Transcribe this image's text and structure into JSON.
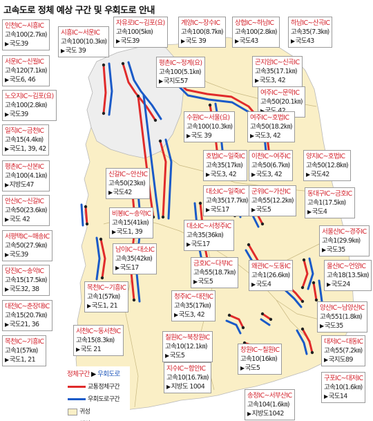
{
  "title": "고속도로 정체 예상 구간 및 우회도로 안내",
  "colors": {
    "congestion_line": "#e02b2b",
    "detour_line": "#1a5ac8",
    "capital_area": "#f2f2f2",
    "provinces": "#faefc6",
    "border": "#b9b9b9",
    "section_text": "#d3202a"
  },
  "legend": {
    "title_congestion": "정체구간",
    "title_detour": "우회도로",
    "items": [
      {
        "label": "교통정체구간"
      },
      {
        "label": "우회도로구간"
      },
      {
        "label": "귀성"
      },
      {
        "label": "귀경"
      }
    ]
  },
  "routes": [
    {
      "section": "인천IC~시흥IC",
      "congestion": "고속100(2.7㎞)",
      "detour": "국도39"
    },
    {
      "section": "시흥IC~서운IC",
      "congestion": "고속100(10.3㎞)",
      "detour": "국도 39"
    },
    {
      "section": "자유로IC~김포(요)",
      "congestion": "고속100(5㎞)",
      "detour": "국도39"
    },
    {
      "section": "계양IC~장수IC",
      "congestion": "고속100(8.7㎞)",
      "detour": "국도 39"
    },
    {
      "section": "상협IC~하남IC",
      "congestion": "고속100(2.8㎞)",
      "detour": "국도43"
    },
    {
      "section": "하남IC~산곡IC",
      "congestion": "고속35(7.3㎞)",
      "detour": "국도43"
    },
    {
      "section": "서운IC~신월IC",
      "congestion": "고속120(7.1㎞)",
      "detour": "국도6, 46"
    },
    {
      "section": "평촌IC~정계(요)",
      "congestion": "고속100(5.1㎞)",
      "detour": "국지도57"
    },
    {
      "section": "곤지암IC~신곡IC",
      "congestion": "고속35(17.1㎞)",
      "detour": "국도3, 42"
    },
    {
      "section": "노오지IC~김포(요)",
      "congestion": "고속100(2.8㎞)",
      "detour": "국도39"
    },
    {
      "section": "여주IC~문막IC",
      "congestion": "고속50(20.1㎞)",
      "detour": "국도 42"
    },
    {
      "section": "일직IC~금천IC",
      "congestion": "고속15(4.4㎞)",
      "detour": "국도1, 39, 42"
    },
    {
      "section": "수원IC~서울(요)",
      "congestion": "고속100(10.3㎞)",
      "detour": "국도 39"
    },
    {
      "section": "여주IC~호법IC",
      "congestion": "고속50(18.2㎞)",
      "detour": "국도3, 42"
    },
    {
      "section": "평촌IC~산본IC",
      "congestion": "고속100(4.1㎞)",
      "detour": "지방도47"
    },
    {
      "section": "호법IC~일죽IC",
      "congestion": "고속35(17㎞)",
      "detour": "국도3, 42"
    },
    {
      "section": "이천IC~여주IC",
      "congestion": "고속50(6.7㎞)",
      "detour": "국도3, 42"
    },
    {
      "section": "양지IC~호법IC",
      "congestion": "고속50(12.8㎞)",
      "detour": "국도42"
    },
    {
      "section": "신갈IC~안산IC",
      "congestion": "고속50(23㎞)",
      "detour": "국도42"
    },
    {
      "section": "안산IC~신갈IC",
      "congestion": "고속50(23.6㎞)",
      "detour": "국도 42"
    },
    {
      "section": "대소IC~일죽IC",
      "congestion": "고속35(17.7㎞)",
      "detour": "국도17"
    },
    {
      "section": "군위IC~가산IC",
      "congestion": "고속55(12.2㎞)",
      "detour": "국도5"
    },
    {
      "section": "동대구IC~금호IC",
      "congestion": "고속1(17.5㎞)",
      "detour": "국도4"
    },
    {
      "section": "비봉IC~송악IC",
      "congestion": "고속15(41㎞)",
      "detour": "국도1, 39"
    },
    {
      "section": "서평택IC~매송IC",
      "congestion": "고속50(27.9㎞)",
      "detour": "국도39"
    },
    {
      "section": "대소IC~서청주IC",
      "congestion": "고속35(36㎞)",
      "detour": "국도17"
    },
    {
      "section": "서울산IC~경주IC",
      "congestion": "고속1(29.9㎞)",
      "detour": "국도35"
    },
    {
      "section": "남이IC~대소IC",
      "congestion": "고속35(42㎞)",
      "detour": "국도17"
    },
    {
      "section": "금호IC~다부IC",
      "congestion": "고속55(18.7㎞)",
      "detour": "국도5"
    },
    {
      "section": "당진IC~송악IC",
      "congestion": "고속15(17.5㎞)",
      "detour": "국도32, 38"
    },
    {
      "section": "왜관IC~도동IC",
      "congestion": "고속1(26.6㎞)",
      "detour": "국도4"
    },
    {
      "section": "울산IC~언양IC",
      "congestion": "고속18(13.5㎞)",
      "detour": "국도24"
    },
    {
      "section": "목천IC~기흥IC",
      "congestion": "고속1(57㎞)",
      "detour": "국도1, 21"
    },
    {
      "section": "대전IC~춘장대IC",
      "congestion": "고속15(20.7㎞)",
      "detour": "국도21, 36"
    },
    {
      "section": "청주IC~대전IC",
      "congestion": "고속35(17㎞)",
      "detour": "국도3, 42"
    },
    {
      "section": "양산IC~남양산IC",
      "congestion": "고속551(1.8㎞)",
      "detour": "국도35"
    },
    {
      "section": "서천IC~동서천IC",
      "congestion": "고속15(8.3㎞)",
      "detour": "국도 21"
    },
    {
      "section": "칠원IC~북창원IC",
      "congestion": "고속10(12.1㎞)",
      "detour": "국도5"
    },
    {
      "section": "대저IC~대동IC",
      "congestion": "고속55(7.2㎞)",
      "detour": "국지도89"
    },
    {
      "section": "목천IC~기흥IC",
      "congestion": "고속1(57㎞)",
      "detour": "국도1, 21"
    },
    {
      "section": "창원IC~칠원IC",
      "congestion": "고속10(16㎞)",
      "detour": "국도5"
    },
    {
      "section": "지수IC~함안IC",
      "congestion": "고속10(16.7㎞)",
      "detour": "지방도 1004"
    },
    {
      "section": "구포IC~대저IC",
      "congestion": "고속10(1.6㎞)",
      "detour": "국도14"
    },
    {
      "section": "송정IC~서부산IC",
      "congestion": "고속104(1.6㎞)",
      "detour": "지방도1042"
    }
  ]
}
